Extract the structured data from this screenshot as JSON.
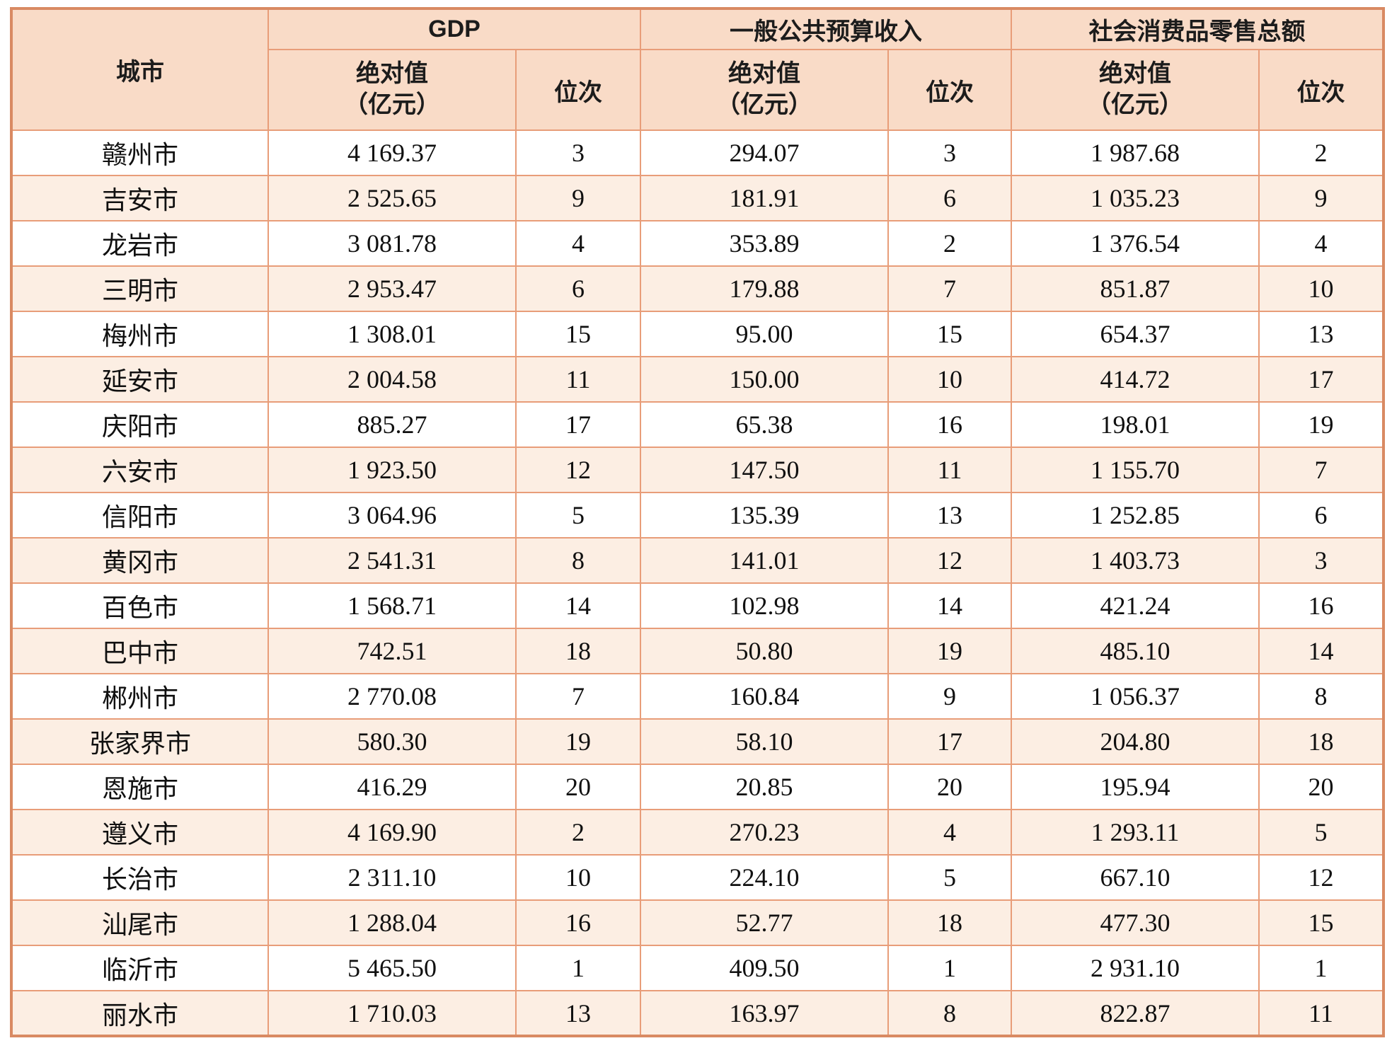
{
  "chart_data": {
    "type": "table",
    "corner_header": "城市",
    "column_groups": [
      {
        "label": "GDP",
        "span": 2
      },
      {
        "label": "一般公共预算收入",
        "span": 2
      },
      {
        "label": "社会消费品零售总额",
        "span": 2
      }
    ],
    "sub_headers": [
      "绝对值\n（亿元）",
      "位次",
      "绝对值\n（亿元）",
      "位次",
      "绝对值\n（亿元）",
      "位次"
    ],
    "unit": "亿元",
    "rows": [
      [
        "赣州市",
        "4 169.37",
        "3",
        "294.07",
        "3",
        "1 987.68",
        "2"
      ],
      [
        "吉安市",
        "2 525.65",
        "9",
        "181.91",
        "6",
        "1 035.23",
        "9"
      ],
      [
        "龙岩市",
        "3 081.78",
        "4",
        "353.89",
        "2",
        "1 376.54",
        "4"
      ],
      [
        "三明市",
        "2 953.47",
        "6",
        "179.88",
        "7",
        "851.87",
        "10"
      ],
      [
        "梅州市",
        "1 308.01",
        "15",
        "95.00",
        "15",
        "654.37",
        "13"
      ],
      [
        "延安市",
        "2 004.58",
        "11",
        "150.00",
        "10",
        "414.72",
        "17"
      ],
      [
        "庆阳市",
        "885.27",
        "17",
        "65.38",
        "16",
        "198.01",
        "19"
      ],
      [
        "六安市",
        "1 923.50",
        "12",
        "147.50",
        "11",
        "1 155.70",
        "7"
      ],
      [
        "信阳市",
        "3 064.96",
        "5",
        "135.39",
        "13",
        "1 252.85",
        "6"
      ],
      [
        "黄冈市",
        "2 541.31",
        "8",
        "141.01",
        "12",
        "1 403.73",
        "3"
      ],
      [
        "百色市",
        "1 568.71",
        "14",
        "102.98",
        "14",
        "421.24",
        "16"
      ],
      [
        "巴中市",
        "742.51",
        "18",
        "50.80",
        "19",
        "485.10",
        "14"
      ],
      [
        "郴州市",
        "2 770.08",
        "7",
        "160.84",
        "9",
        "1 056.37",
        "8"
      ],
      [
        "张家界市",
        "580.30",
        "19",
        "58.10",
        "17",
        "204.80",
        "18"
      ],
      [
        "恩施市",
        "416.29",
        "20",
        "20.85",
        "20",
        "195.94",
        "20"
      ],
      [
        "遵义市",
        "4 169.90",
        "2",
        "270.23",
        "4",
        "1 293.11",
        "5"
      ],
      [
        "长治市",
        "2 311.10",
        "10",
        "224.10",
        "5",
        "667.10",
        "12"
      ],
      [
        "汕尾市",
        "1 288.04",
        "16",
        "52.77",
        "18",
        "477.30",
        "15"
      ],
      [
        "临沂市",
        "5 465.50",
        "1",
        "409.50",
        "1",
        "2 931.10",
        "1"
      ],
      [
        "丽水市",
        "1 710.03",
        "13",
        "163.97",
        "8",
        "822.87",
        "11"
      ]
    ]
  },
  "colors": {
    "header_bg": "#f9dbc7",
    "stripe_bg": "#fceee3",
    "row_bg": "#ffffff",
    "inner_border": "#e89d79",
    "outer_border": "#d98a63"
  }
}
